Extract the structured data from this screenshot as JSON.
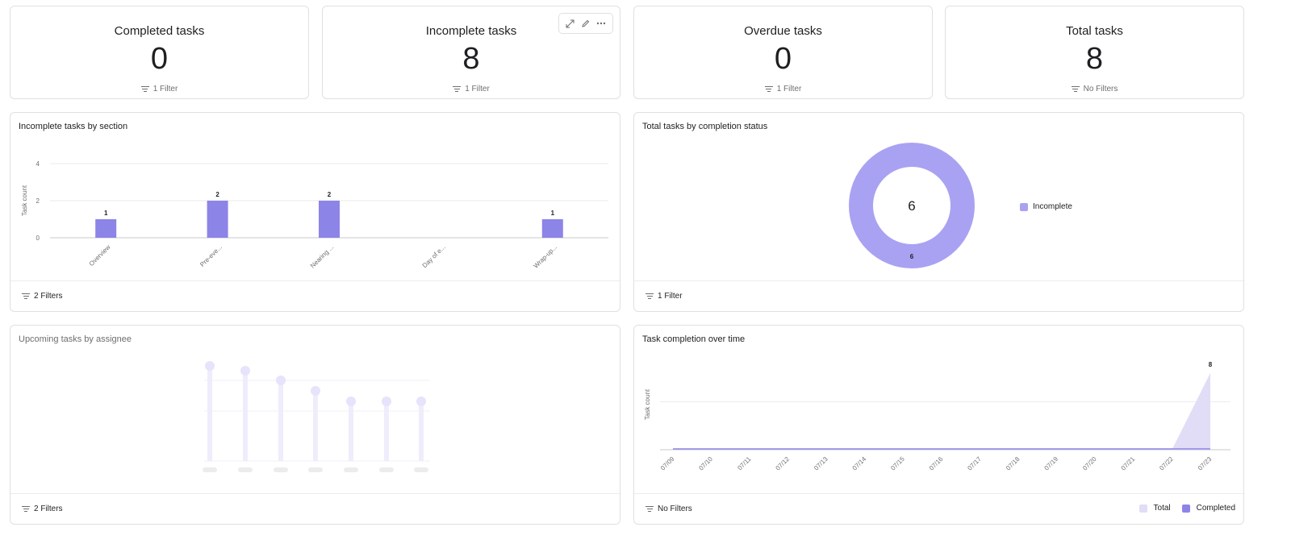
{
  "kpis": [
    {
      "title": "Completed tasks",
      "value": "0",
      "filter": "1 Filter"
    },
    {
      "title": "Incomplete tasks",
      "value": "8",
      "filter": "1 Filter"
    },
    {
      "title": "Overdue tasks",
      "value": "0",
      "filter": "1 Filter"
    },
    {
      "title": "Total tasks",
      "value": "8",
      "filter": "No Filters"
    }
  ],
  "toolbar": {
    "expand": "expand-icon",
    "edit": "pencil-icon",
    "more": "more-icon"
  },
  "section_chart": {
    "title": "Incomplete tasks by section",
    "filter": "2 Filters"
  },
  "status_chart": {
    "title": "Total tasks by completion status",
    "filter": "1 Filter",
    "legend": "Incomplete"
  },
  "assignee_chart": {
    "title": "Upcoming tasks by assignee",
    "filter": "2 Filters"
  },
  "time_chart": {
    "title": "Task completion over time",
    "filter": "No Filters",
    "legend_total": "Total",
    "legend_completed": "Completed"
  },
  "colors": {
    "bar": "#8d84e8",
    "donut": "#a9a2f2",
    "area": "#e1ddf7",
    "placeholder": "#e6e3fb"
  },
  "chart_data": [
    {
      "type": "bar",
      "title": "Incomplete tasks by section",
      "ylabel": "Task count",
      "categories": [
        "Overview",
        "Pre-eve...",
        "Nearing ...",
        "Day of e...",
        "Wrap-up..."
      ],
      "values": [
        1,
        2,
        2,
        0,
        1
      ],
      "value_labels": [
        "1",
        "2",
        "2",
        "",
        "1"
      ],
      "yticks": [
        "0",
        "2",
        "4"
      ],
      "ylim": [
        0,
        4
      ]
    },
    {
      "type": "pie",
      "title": "Total tasks by completion status",
      "center_label": "6",
      "slices": [
        {
          "label": "Incomplete",
          "value": 6,
          "value_label": "6"
        }
      ]
    },
    {
      "type": "area",
      "title": "Task completion over time",
      "ylabel": "Task count",
      "x": [
        "07/09",
        "07/10",
        "07/11",
        "07/12",
        "07/13",
        "07/14",
        "07/15",
        "07/16",
        "07/17",
        "07/18",
        "07/19",
        "07/20",
        "07/21",
        "07/22",
        "07/23"
      ],
      "series": [
        {
          "name": "Total",
          "values": [
            0,
            0,
            0,
            0,
            0,
            0,
            0,
            0,
            0,
            0,
            0,
            0,
            0,
            0,
            8
          ]
        },
        {
          "name": "Completed",
          "values": [
            0,
            0,
            0,
            0,
            0,
            0,
            0,
            0,
            0,
            0,
            0,
            0,
            0,
            0,
            0
          ]
        }
      ],
      "end_label": "8",
      "ylim": [
        0,
        10
      ]
    }
  ]
}
